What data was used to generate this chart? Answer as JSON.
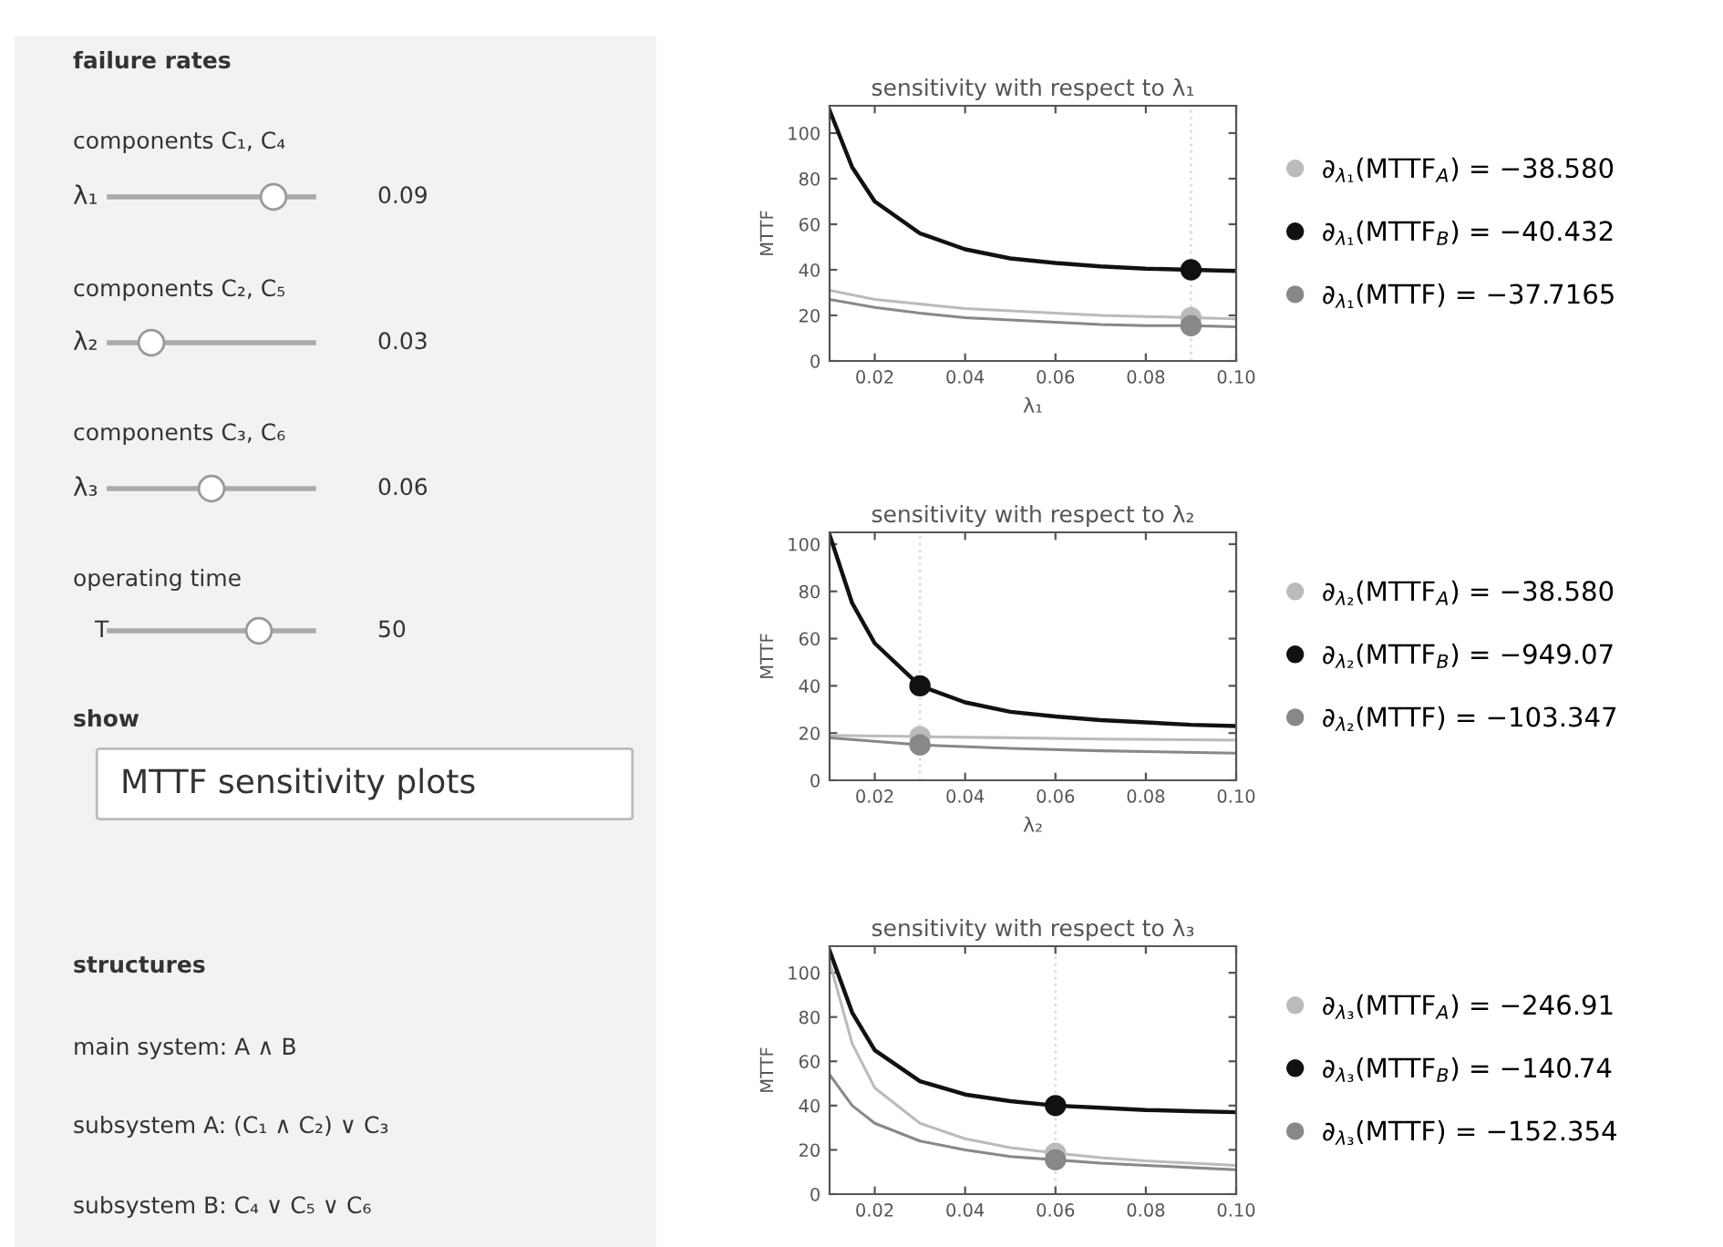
{
  "chart_data": [
    {
      "type": "other",
      "annotations": [
        "failure rates",
        "components C₁, C₄",
        "λ₁",
        "0.09",
        "components C₂, C₅",
        "λ₂",
        "0.03",
        "components C₃, C₆",
        "λ₃",
        "0.06",
        "operating time",
        "T",
        "50",
        "show",
        "MTTF sensitivity plots",
        "structures",
        "main system: A ∧ B",
        "subsystem A: (C₁ ∧ C₂) ∨ C₃",
        "subsystem B: C₄ ∨ C₅ ∨ C₆"
      ]
    },
    {
      "type": "line",
      "title": "sensitivity with respect to λ₁",
      "xlabel": "λ₁",
      "ylabel": "MTTF",
      "xlim": [
        0.01,
        0.1
      ],
      "ylim": [
        0,
        112
      ],
      "xticks": [
        {
          "value": 0.02,
          "label": "0.02"
        },
        {
          "value": 0.04,
          "label": "0.04"
        },
        {
          "value": 0.06,
          "label": "0.06"
        },
        {
          "value": 0.08,
          "label": "0.08"
        },
        {
          "value": 0.1,
          "label": "0.10"
        }
      ],
      "yticks": [
        0,
        20,
        40,
        60,
        80,
        100
      ],
      "grid": false,
      "legend": "right",
      "ref_lines": [
        {
          "axis": "x",
          "value": 0.09,
          "color": "#dddddd",
          "line_style": "dotted"
        }
      ],
      "series": [
        {
          "name": "∂$_{λ₁}$(MTTF$_{A}$) = −38.580",
          "color": "#bbbbbb",
          "x": [
            0.01,
            0.02,
            0.03,
            0.04,
            0.05,
            0.06,
            0.07,
            0.08,
            0.09,
            0.1
          ],
          "values": [
            31,
            27,
            25,
            23,
            22,
            21,
            20,
            19.5,
            19,
            18.5
          ]
        },
        {
          "name": "∂$_{λ₁}$(MTTF$_{B}$) = −40.432",
          "color": "#111111",
          "x": [
            0.01,
            0.015,
            0.02,
            0.03,
            0.04,
            0.05,
            0.06,
            0.07,
            0.08,
            0.09,
            0.1
          ],
          "values": [
            110,
            85,
            70,
            56,
            49,
            45,
            43,
            41.5,
            40.5,
            40,
            39.5
          ]
        },
        {
          "name": "∂$_{λ₁}$(MTTF) = −37.7165",
          "color": "#888888",
          "x": [
            0.01,
            0.02,
            0.03,
            0.04,
            0.05,
            0.06,
            0.07,
            0.08,
            0.09,
            0.1
          ],
          "values": [
            27,
            23.5,
            21,
            19,
            18,
            17,
            16,
            15.5,
            15.5,
            15
          ]
        },
        {
          "type": "scatter",
          "x": [
            0.09,
            0.09,
            0.09
          ],
          "values": [
            19,
            40,
            15.5
          ],
          "colors": [
            "#bbbbbb",
            "#111111",
            "#888888"
          ]
        }
      ]
    },
    {
      "type": "line",
      "title": "sensitivity with respect to λ₂",
      "xlabel": "λ₂",
      "ylabel": "MTTF",
      "xlim": [
        0.01,
        0.1
      ],
      "ylim": [
        0,
        105
      ],
      "xticks": [
        {
          "value": 0.02,
          "label": "0.02"
        },
        {
          "value": 0.04,
          "label": "0.04"
        },
        {
          "value": 0.06,
          "label": "0.06"
        },
        {
          "value": 0.08,
          "label": "0.08"
        },
        {
          "value": 0.1,
          "label": "0.10"
        }
      ],
      "yticks": [
        0,
        20,
        40,
        60,
        80,
        100
      ],
      "grid": false,
      "legend": "right",
      "ref_lines": [
        {
          "axis": "x",
          "value": 0.03,
          "color": "#dddddd",
          "line_style": "dotted"
        }
      ],
      "series": [
        {
          "name": "∂$_{λ₂}$(MTTF$_{A}$) = −38.580",
          "color": "#bbbbbb",
          "x": [
            0.01,
            0.03,
            0.05,
            0.07,
            0.1
          ],
          "values": [
            19,
            18.5,
            18,
            17.5,
            17
          ]
        },
        {
          "name": "∂$_{λ₂}$(MTTF$_{B}$) = −949.07",
          "color": "#111111",
          "x": [
            0.01,
            0.015,
            0.02,
            0.03,
            0.04,
            0.05,
            0.06,
            0.07,
            0.08,
            0.09,
            0.1
          ],
          "values": [
            104,
            75,
            58,
            40,
            33,
            29,
            27,
            25.5,
            24.5,
            23.5,
            23
          ]
        },
        {
          "name": "∂$_{λ₂}$(MTTF) = −103.347",
          "color": "#888888",
          "x": [
            0.01,
            0.02,
            0.03,
            0.05,
            0.07,
            0.1
          ],
          "values": [
            18,
            16.5,
            15,
            13.5,
            12.5,
            11.5
          ]
        },
        {
          "type": "scatter",
          "x": [
            0.03,
            0.03,
            0.03
          ],
          "values": [
            18.5,
            40,
            15
          ],
          "colors": [
            "#bbbbbb",
            "#111111",
            "#888888"
          ]
        }
      ]
    },
    {
      "type": "line",
      "title": "sensitivity with respect to λ₃",
      "ylabel": "MTTF",
      "xlim": [
        0.01,
        0.1
      ],
      "ylim": [
        0,
        112
      ],
      "xticks": [
        {
          "value": 0.02,
          "label": "0.02"
        },
        {
          "value": 0.04,
          "label": "0.04"
        },
        {
          "value": 0.06,
          "label": "0.06"
        },
        {
          "value": 0.08,
          "label": "0.08"
        },
        {
          "value": 0.1,
          "label": "0.10"
        }
      ],
      "yticks": [
        0,
        20,
        40,
        60,
        80,
        100
      ],
      "grid": false,
      "legend": "right",
      "ref_lines": [
        {
          "axis": "x",
          "value": 0.06,
          "color": "#dddddd",
          "line_style": "dotted"
        }
      ],
      "series": [
        {
          "name": "∂$_{λ₃}$(MTTF$_{A}$) = −246.91",
          "color": "#bbbbbb",
          "x": [
            0.01,
            0.015,
            0.02,
            0.03,
            0.04,
            0.05,
            0.06,
            0.07,
            0.08,
            0.09,
            0.1
          ],
          "values": [
            105,
            68,
            48,
            32,
            25,
            21,
            18.5,
            16.5,
            15,
            14,
            13
          ]
        },
        {
          "name": "∂$_{λ₃}$(MTTF$_{B}$) = −140.74",
          "color": "#111111",
          "x": [
            0.01,
            0.015,
            0.02,
            0.03,
            0.04,
            0.05,
            0.06,
            0.07,
            0.08,
            0.09,
            0.1
          ],
          "values": [
            110,
            82,
            65,
            51,
            45,
            42,
            40,
            39,
            38,
            37.5,
            37
          ]
        },
        {
          "name": "∂$_{λ₃}$(MTTF) = −152.354",
          "color": "#888888",
          "x": [
            0.01,
            0.015,
            0.02,
            0.03,
            0.04,
            0.05,
            0.06,
            0.07,
            0.08,
            0.09,
            0.1
          ],
          "values": [
            54,
            40,
            32,
            24,
            20,
            17,
            15.5,
            14,
            13,
            12,
            11
          ]
        },
        {
          "type": "scatter",
          "x": [
            0.06,
            0.06,
            0.06
          ],
          "values": [
            18.5,
            40,
            15.5
          ],
          "colors": [
            "#bbbbbb",
            "#111111",
            "#888888"
          ]
        }
      ]
    }
  ]
}
